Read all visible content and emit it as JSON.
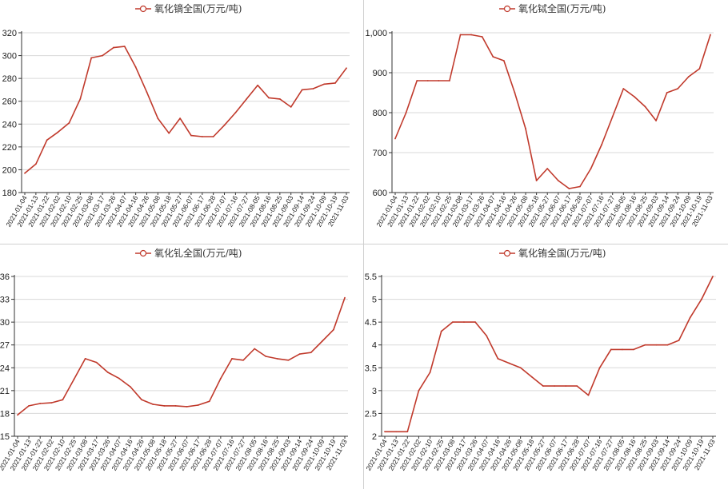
{
  "colors": {
    "series": "#c0392b",
    "grid": "#d9d9d9",
    "axis": "#333333"
  },
  "x_labels": [
    "2021-01-04",
    "2021-01-13",
    "2021-01-22",
    "2021-02-02",
    "2021-02-10",
    "2021-02-25",
    "2021-03-08",
    "2021-03-17",
    "2021-03-26",
    "2021-04-07",
    "2021-04-16",
    "2021-04-26",
    "2021-05-08",
    "2021-05-18",
    "2021-05-27",
    "2021-06-07",
    "2021-06-17",
    "2021-06-28",
    "2021-07-07",
    "2021-07-16",
    "2021-07-27",
    "2021-08-05",
    "2021-08-16",
    "2021-08-25",
    "2021-09-03",
    "2021-09-14",
    "2021-09-24",
    "2021-10-09",
    "2021-10-19",
    "2021-11-03"
  ],
  "chart_data": [
    {
      "type": "line",
      "title": "",
      "legend": "氧化镝全国(万元/吨)",
      "ylim": [
        180,
        320
      ],
      "yticks": [
        "180",
        "200",
        "220",
        "240",
        "260",
        "280",
        "300",
        "320"
      ],
      "ytick_values": [
        180,
        200,
        220,
        240,
        260,
        280,
        300,
        320
      ],
      "x": [
        "2021-01-04",
        "2021-01-13",
        "2021-01-22",
        "2021-02-02",
        "2021-02-10",
        "2021-02-25",
        "2021-03-08",
        "2021-03-17",
        "2021-03-26",
        "2021-04-07",
        "2021-04-16",
        "2021-04-26",
        "2021-05-08",
        "2021-05-18",
        "2021-05-27",
        "2021-06-07",
        "2021-06-17",
        "2021-06-28",
        "2021-07-07",
        "2021-07-16",
        "2021-07-27",
        "2021-08-05",
        "2021-08-16",
        "2021-08-25",
        "2021-09-03",
        "2021-09-14",
        "2021-09-24",
        "2021-10-09",
        "2021-10-19",
        "2021-11-03"
      ],
      "values": [
        197,
        205,
        226,
        233,
        241,
        262,
        298,
        300,
        307,
        308,
        290,
        268,
        245,
        232,
        245,
        230,
        229,
        229,
        239,
        250,
        262,
        274,
        263,
        262,
        255,
        270,
        271,
        275,
        276,
        289
      ]
    },
    {
      "type": "line",
      "title": "",
      "legend": "氧化铽全国(万元/吨)",
      "ylim": [
        600,
        1000
      ],
      "yticks": [
        "600",
        "700",
        "800",
        "900",
        "1,000"
      ],
      "ytick_values": [
        600,
        700,
        800,
        900,
        1000
      ],
      "x": [
        "2021-01-04",
        "2021-01-13",
        "2021-01-22",
        "2021-02-02",
        "2021-02-10",
        "2021-02-25",
        "2021-03-08",
        "2021-03-17",
        "2021-03-26",
        "2021-04-07",
        "2021-04-16",
        "2021-04-26",
        "2021-05-08",
        "2021-05-18",
        "2021-05-27",
        "2021-06-07",
        "2021-06-17",
        "2021-06-28",
        "2021-07-07",
        "2021-07-16",
        "2021-07-27",
        "2021-08-05",
        "2021-08-16",
        "2021-08-25",
        "2021-09-03",
        "2021-09-14",
        "2021-09-24",
        "2021-10-09",
        "2021-10-19",
        "2021-11-03"
      ],
      "values": [
        735,
        800,
        880,
        880,
        880,
        880,
        995,
        995,
        990,
        940,
        930,
        850,
        760,
        630,
        660,
        630,
        610,
        615,
        660,
        720,
        790,
        860,
        840,
        815,
        780,
        850,
        860,
        890,
        910,
        995
      ]
    },
    {
      "type": "line",
      "title": "",
      "legend": "氧化钆全国(万元/吨)",
      "ylim": [
        15,
        36
      ],
      "yticks": [
        "15",
        "18",
        "21",
        "24",
        "27",
        "30",
        "33",
        "36"
      ],
      "ytick_values": [
        15,
        18,
        21,
        24,
        27,
        30,
        33,
        36
      ],
      "x": [
        "2021-01-04",
        "2021-01-13",
        "2021-01-22",
        "2021-02-02",
        "2021-02-10",
        "2021-02-25",
        "2021-03-08",
        "2021-03-17",
        "2021-03-26",
        "2021-04-07",
        "2021-04-16",
        "2021-04-26",
        "2021-05-08",
        "2021-05-18",
        "2021-05-27",
        "2021-06-07",
        "2021-06-17",
        "2021-06-28",
        "2021-07-07",
        "2021-07-16",
        "2021-07-27",
        "2021-08-05",
        "2021-08-16",
        "2021-08-25",
        "2021-09-03",
        "2021-09-14",
        "2021-09-24",
        "2021-10-09",
        "2021-10-19",
        "2021-11-03"
      ],
      "values": [
        17.8,
        19.0,
        19.3,
        19.4,
        19.8,
        22.5,
        25.2,
        24.7,
        23.4,
        22.6,
        21.5,
        19.8,
        19.2,
        19.0,
        19.0,
        18.9,
        19.1,
        19.6,
        22.6,
        25.2,
        25.0,
        26.5,
        25.5,
        25.2,
        25.0,
        25.8,
        26.0,
        27.5,
        29.0,
        33.2
      ]
    },
    {
      "type": "line",
      "title": "",
      "legend": "氧化铕全国(万元/吨)",
      "ylim": [
        2,
        5.5
      ],
      "yticks": [
        "2",
        "2.5",
        "3",
        "3.5",
        "4",
        "4.5",
        "5",
        "5.5"
      ],
      "ytick_values": [
        2,
        2.5,
        3,
        3.5,
        4,
        4.5,
        5,
        5.5
      ],
      "x": [
        "2021-01-04",
        "2021-01-13",
        "2021-01-22",
        "2021-02-02",
        "2021-02-10",
        "2021-02-25",
        "2021-03-08",
        "2021-03-17",
        "2021-03-26",
        "2021-04-07",
        "2021-04-16",
        "2021-04-26",
        "2021-05-08",
        "2021-05-18",
        "2021-05-27",
        "2021-06-07",
        "2021-06-17",
        "2021-06-28",
        "2021-07-07",
        "2021-07-16",
        "2021-07-27",
        "2021-08-05",
        "2021-08-16",
        "2021-08-25",
        "2021-09-03",
        "2021-09-14",
        "2021-09-24",
        "2021-10-09",
        "2021-10-19",
        "2021-11-03"
      ],
      "values": [
        2.1,
        2.1,
        2.1,
        3.0,
        3.4,
        4.3,
        4.5,
        4.5,
        4.5,
        4.2,
        3.7,
        3.6,
        3.5,
        3.3,
        3.1,
        3.1,
        3.1,
        3.1,
        2.9,
        3.5,
        3.9,
        3.9,
        3.9,
        4.0,
        4.0,
        4.0,
        4.1,
        4.6,
        5.0,
        5.5
      ]
    }
  ]
}
